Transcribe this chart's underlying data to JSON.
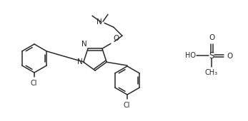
{
  "background_color": "#ffffff",
  "line_color": "#2a2a2a",
  "line_width": 1.1,
  "font_size": 7.0,
  "figsize": [
    3.47,
    1.7
  ],
  "dpi": 100,
  "xlim": [
    0,
    347
  ],
  "ylim": [
    0,
    170
  ]
}
